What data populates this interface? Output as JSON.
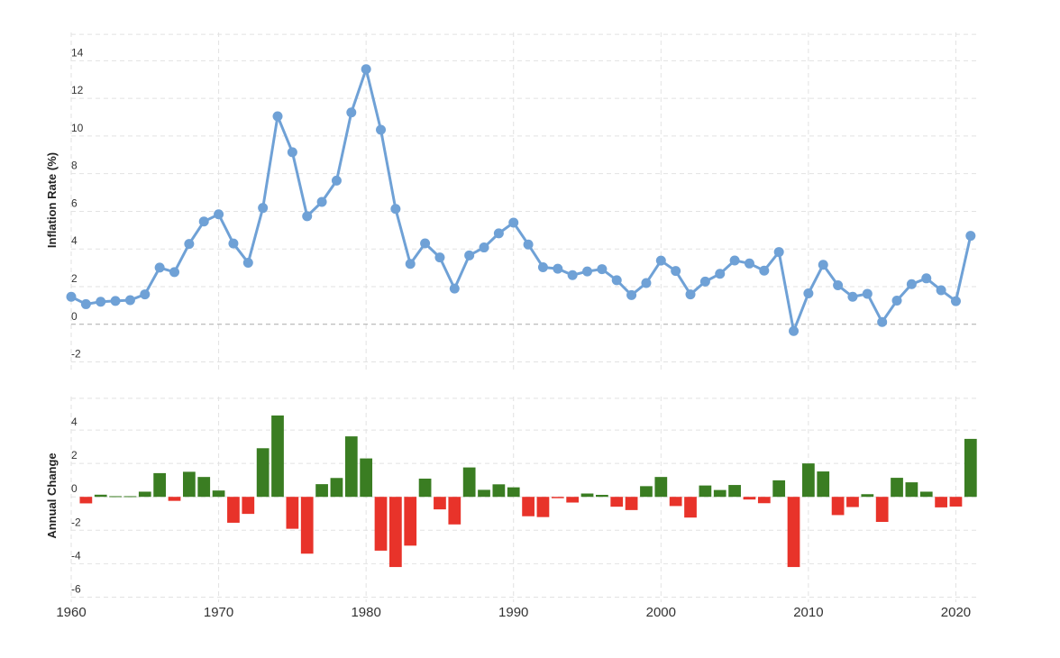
{
  "chart_data": [
    {
      "type": "line",
      "ylabel": "Inflation Rate (%)",
      "ylim": [
        -2.5,
        15.5
      ],
      "yticks": [
        -2,
        0,
        2,
        4,
        6,
        8,
        10,
        12,
        14
      ],
      "xlim": [
        1960,
        2021.5
      ],
      "grid": true,
      "series": [
        {
          "color": "#6fa1d6",
          "x": [
            1960,
            1961,
            1962,
            1963,
            1964,
            1965,
            1966,
            1967,
            1968,
            1969,
            1970,
            1971,
            1972,
            1973,
            1974,
            1975,
            1976,
            1977,
            1978,
            1979,
            1980,
            1981,
            1982,
            1983,
            1984,
            1985,
            1986,
            1987,
            1988,
            1989,
            1990,
            1991,
            1992,
            1993,
            1994,
            1995,
            1996,
            1997,
            1998,
            1999,
            2000,
            2001,
            2002,
            2003,
            2004,
            2005,
            2006,
            2007,
            2008,
            2009,
            2010,
            2011,
            2012,
            2013,
            2014,
            2015,
            2016,
            2017,
            2018,
            2019,
            2020,
            2021
          ],
          "values": [
            1.46,
            1.07,
            1.2,
            1.24,
            1.28,
            1.59,
            3.01,
            2.77,
            4.27,
            5.46,
            5.84,
            4.29,
            3.27,
            6.18,
            11.05,
            9.14,
            5.74,
            6.5,
            7.63,
            11.25,
            13.55,
            10.33,
            6.13,
            3.21,
            4.3,
            3.55,
            1.9,
            3.66,
            4.08,
            4.83,
            5.4,
            4.24,
            3.03,
            2.95,
            2.61,
            2.81,
            2.93,
            2.34,
            1.55,
            2.19,
            3.38,
            2.83,
            1.59,
            2.27,
            2.68,
            3.39,
            3.23,
            2.85,
            3.84,
            -0.36,
            1.64,
            3.16,
            2.07,
            1.46,
            1.62,
            0.12,
            1.26,
            2.13,
            2.44,
            1.81,
            1.23,
            4.7
          ]
        }
      ]
    },
    {
      "type": "bar",
      "ylabel": "Annual Change",
      "ylim": [
        -6.3,
        6.0
      ],
      "yticks": [
        -6,
        -4,
        -2,
        0,
        2,
        4
      ],
      "grid": true,
      "positive_color": "#3a7d22",
      "negative_color": "#e8332a",
      "x": [
        1961,
        1962,
        1963,
        1964,
        1965,
        1966,
        1967,
        1968,
        1969,
        1970,
        1971,
        1972,
        1973,
        1974,
        1975,
        1976,
        1977,
        1978,
        1979,
        1980,
        1981,
        1982,
        1983,
        1984,
        1985,
        1986,
        1987,
        1988,
        1989,
        1990,
        1991,
        1992,
        1993,
        1994,
        1995,
        1996,
        1997,
        1998,
        1999,
        2000,
        2001,
        2002,
        2003,
        2004,
        2005,
        2006,
        2007,
        2008,
        2009,
        2010,
        2011,
        2012,
        2013,
        2014,
        2015,
        2016,
        2017,
        2018,
        2019,
        2020,
        2021
      ],
      "values": [
        -0.39,
        0.13,
        0.04,
        0.04,
        0.31,
        1.42,
        -0.24,
        1.5,
        1.19,
        0.38,
        -1.55,
        -1.02,
        2.91,
        4.87,
        -1.91,
        -3.4,
        0.76,
        1.13,
        3.62,
        2.3,
        -3.22,
        -4.2,
        -2.92,
        1.09,
        -0.75,
        -1.65,
        1.76,
        0.42,
        0.75,
        0.57,
        -1.16,
        -1.21,
        -0.08,
        -0.34,
        0.2,
        0.12,
        -0.59,
        -0.79,
        0.64,
        1.19,
        -0.55,
        -1.24,
        0.68,
        0.41,
        0.71,
        -0.16,
        -0.38,
        0.99,
        -4.2,
        2.0,
        1.52,
        -1.09,
        -0.61,
        0.16,
        -1.5,
        1.14,
        0.87,
        0.31,
        -0.63,
        -0.58,
        3.47
      ]
    }
  ],
  "x_axis": {
    "ticks": [
      1960,
      1970,
      1980,
      1990,
      2000,
      2010,
      2020
    ],
    "labels": [
      "1960",
      "1970",
      "1980",
      "1990",
      "2000",
      "2010",
      "2020"
    ]
  }
}
